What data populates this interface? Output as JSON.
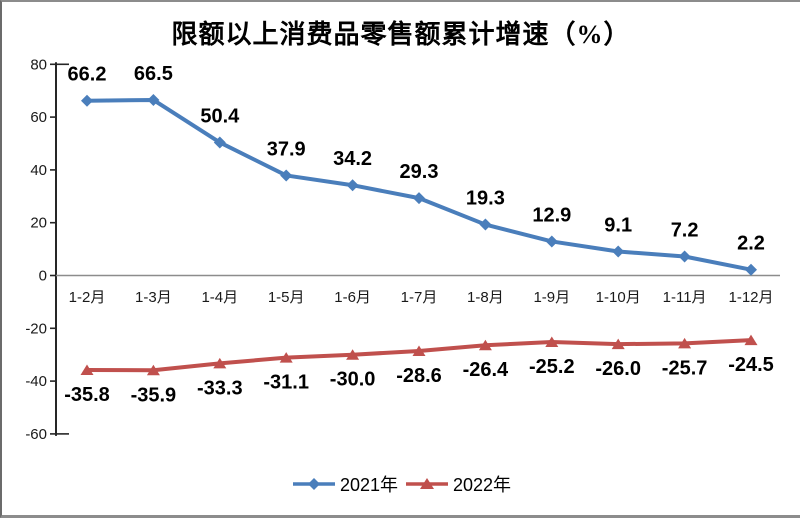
{
  "chart_data": {
    "type": "line",
    "title": "限额以上消费品零售额累计增速（%）",
    "categories": [
      "1-2月",
      "1-3月",
      "1-4月",
      "1-5月",
      "1-6月",
      "1-7月",
      "1-8月",
      "1-9月",
      "1-10月",
      "1-11月",
      "1-12月"
    ],
    "series": [
      {
        "name": "2021年",
        "color": "#4a7ebb",
        "marker": "diamond",
        "label_position": "above",
        "values": [
          66.2,
          66.5,
          50.4,
          37.9,
          34.2,
          29.3,
          19.3,
          12.9,
          9.1,
          7.2,
          2.2
        ]
      },
      {
        "name": "2022年",
        "color": "#c0504d",
        "marker": "triangle",
        "label_position": "below",
        "values": [
          -35.8,
          -35.9,
          -33.3,
          -31.1,
          -30.0,
          -28.6,
          -26.4,
          -25.2,
          -26.0,
          -25.7,
          -24.5
        ]
      }
    ],
    "y_axis": {
      "min": -60,
      "max": 80,
      "step": 20,
      "ticks": [
        80,
        60,
        40,
        20,
        0,
        -20,
        -40,
        -60
      ]
    },
    "x_axis": {
      "label_suffix": "月"
    },
    "legend_position": "bottom",
    "grid": false,
    "colors": {
      "axis": "#262626",
      "zero_line": "#8c8c8c",
      "label_text": "#000000"
    }
  }
}
